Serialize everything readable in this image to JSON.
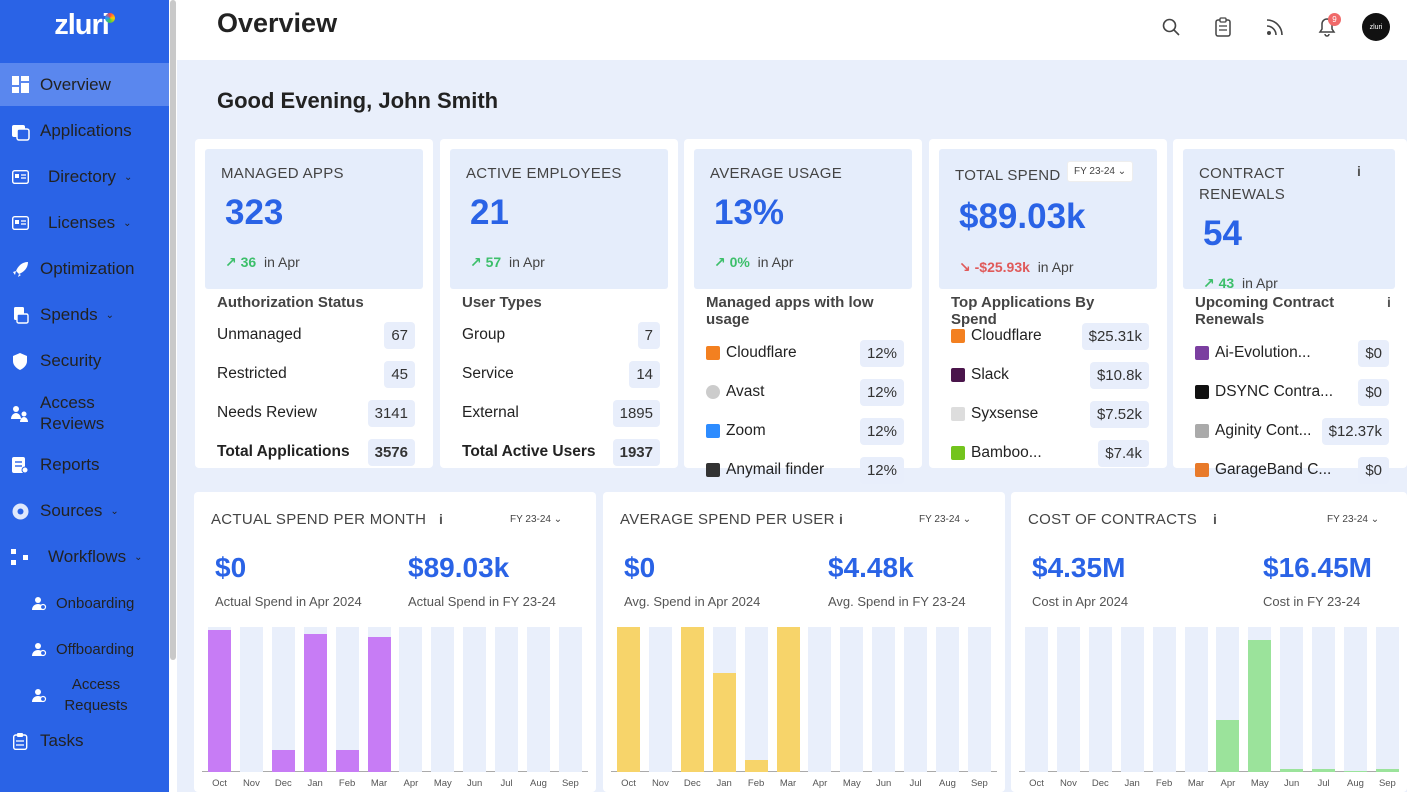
{
  "app": {
    "logo": "zluri"
  },
  "sidebar": {
    "items": [
      {
        "label": "Overview"
      },
      {
        "label": "Applications"
      },
      {
        "label": "Directory"
      },
      {
        "label": "Licenses"
      },
      {
        "label": "Optimization"
      },
      {
        "label": "Spends"
      },
      {
        "label": "Security"
      },
      {
        "label": "Access Reviews"
      },
      {
        "label": "Reports"
      },
      {
        "label": "Sources"
      },
      {
        "label": "Workflows"
      },
      {
        "label": "Onboarding"
      },
      {
        "label": "Offboarding"
      },
      {
        "label": "Access Requests"
      },
      {
        "label": "Tasks"
      }
    ]
  },
  "header": {
    "title": "Overview",
    "notification_count": "9",
    "avatar_text": "zluri"
  },
  "greeting": "Good Evening, John Smith",
  "cards": [
    {
      "label": "MANAGED APPS",
      "value": "323",
      "delta": "36",
      "period": "in Apr",
      "list_title": "Authorization Status",
      "rows": [
        {
          "name": "Unmanaged",
          "value": "67"
        },
        {
          "name": "Restricted",
          "value": "45"
        },
        {
          "name": "Needs Review",
          "value": "3141"
        },
        {
          "name": "Total Applications",
          "value": "3576"
        }
      ]
    },
    {
      "label": "ACTIVE EMPLOYEES",
      "value": "21",
      "delta": "57",
      "period": "in Apr",
      "list_title": "User Types",
      "rows": [
        {
          "name": "Group",
          "value": "7"
        },
        {
          "name": "Service",
          "value": "14"
        },
        {
          "name": "External",
          "value": "1895"
        },
        {
          "name": "Total Active Users",
          "value": "1937"
        }
      ]
    },
    {
      "label": "AVERAGE USAGE",
      "value": "13%",
      "delta": "0%",
      "period": "in Apr",
      "list_title": "Managed apps with low usage",
      "rows": [
        {
          "name": "Cloudflare",
          "value": "12%"
        },
        {
          "name": "Avast",
          "value": "12%"
        },
        {
          "name": "Zoom",
          "value": "12%"
        },
        {
          "name": "Anymail finder",
          "value": "12%"
        }
      ]
    },
    {
      "label": "TOTAL SPEND",
      "fy": "FY 23-24",
      "value": "$89.03k",
      "delta": "-$25.93k",
      "period": "in Apr",
      "list_title": "Top Applications By Spend",
      "rows": [
        {
          "name": "Cloudflare",
          "value": "$25.31k"
        },
        {
          "name": "Slack",
          "value": "$10.8k"
        },
        {
          "name": "Syxsense",
          "value": "$7.52k"
        },
        {
          "name": "Bamboo...",
          "value": "$7.4k"
        }
      ]
    },
    {
      "label": "CONTRACT RENEWALS",
      "value": "54",
      "delta": "43",
      "period": "in Apr",
      "list_title": "Upcoming Contract Renewals",
      "rows": [
        {
          "name": "Ai-Evolution...",
          "value": "$0"
        },
        {
          "name": "DSYNC Contra...",
          "value": "$0"
        },
        {
          "name": "Aginity Cont...",
          "value": "$12.37k"
        },
        {
          "name": "GarageBand C...",
          "value": "$0"
        }
      ]
    }
  ],
  "charts_text": [
    {
      "title": "ACTUAL SPEND PER MONTH",
      "fy": "FY 23-24",
      "v1": "$0",
      "l1": "Actual Spend in Apr 2024",
      "v2": "$89.03k",
      "l2": "Actual Spend in FY 23-24"
    },
    {
      "title": "AVERAGE SPEND PER USER",
      "fy": "FY 23-24",
      "v1": "$0",
      "l1": "Avg. Spend in Apr 2024",
      "v2": "$4.48k",
      "l2": "Avg. Spend in FY 23-24"
    },
    {
      "title": "COST OF CONTRACTS",
      "fy": "FY 23-24",
      "v1": "$4.35M",
      "l1": "Cost in Apr 2024",
      "v2": "$16.45M",
      "l2": "Cost in FY 23-24"
    }
  ],
  "chart_data": [
    {
      "type": "bar",
      "title": "ACTUAL SPEND PER MONTH",
      "categories": [
        "Oct",
        "Nov",
        "Dec",
        "Jan",
        "Feb",
        "Mar",
        "Apr",
        "May",
        "Jun",
        "Jul",
        "Aug",
        "Sep"
      ],
      "values": [
        0.98,
        0,
        0.15,
        0.95,
        0.15,
        0.93,
        0,
        0,
        0,
        0,
        0,
        0
      ],
      "unit": "relative",
      "color": "#c77cf5"
    },
    {
      "type": "bar",
      "title": "AVERAGE SPEND PER USER",
      "categories": [
        "Oct",
        "Nov",
        "Dec",
        "Jan",
        "Feb",
        "Mar",
        "Apr",
        "May",
        "Jun",
        "Jul",
        "Aug",
        "Sep"
      ],
      "values": [
        1.0,
        0,
        1.0,
        0.68,
        0.08,
        1.0,
        0,
        0,
        0,
        0,
        0,
        0
      ],
      "unit": "relative",
      "color": "#f7d46a"
    },
    {
      "type": "bar",
      "title": "COST OF CONTRACTS",
      "categories": [
        "Oct",
        "Nov",
        "Dec",
        "Jan",
        "Feb",
        "Mar",
        "Apr",
        "May",
        "Jun",
        "Jul",
        "Aug",
        "Sep"
      ],
      "values": [
        0,
        0,
        0,
        0,
        0,
        0,
        0.36,
        0.91,
        0.02,
        0.02,
        0.01,
        0.02
      ],
      "unit": "relative",
      "color": "#9be39b"
    }
  ]
}
